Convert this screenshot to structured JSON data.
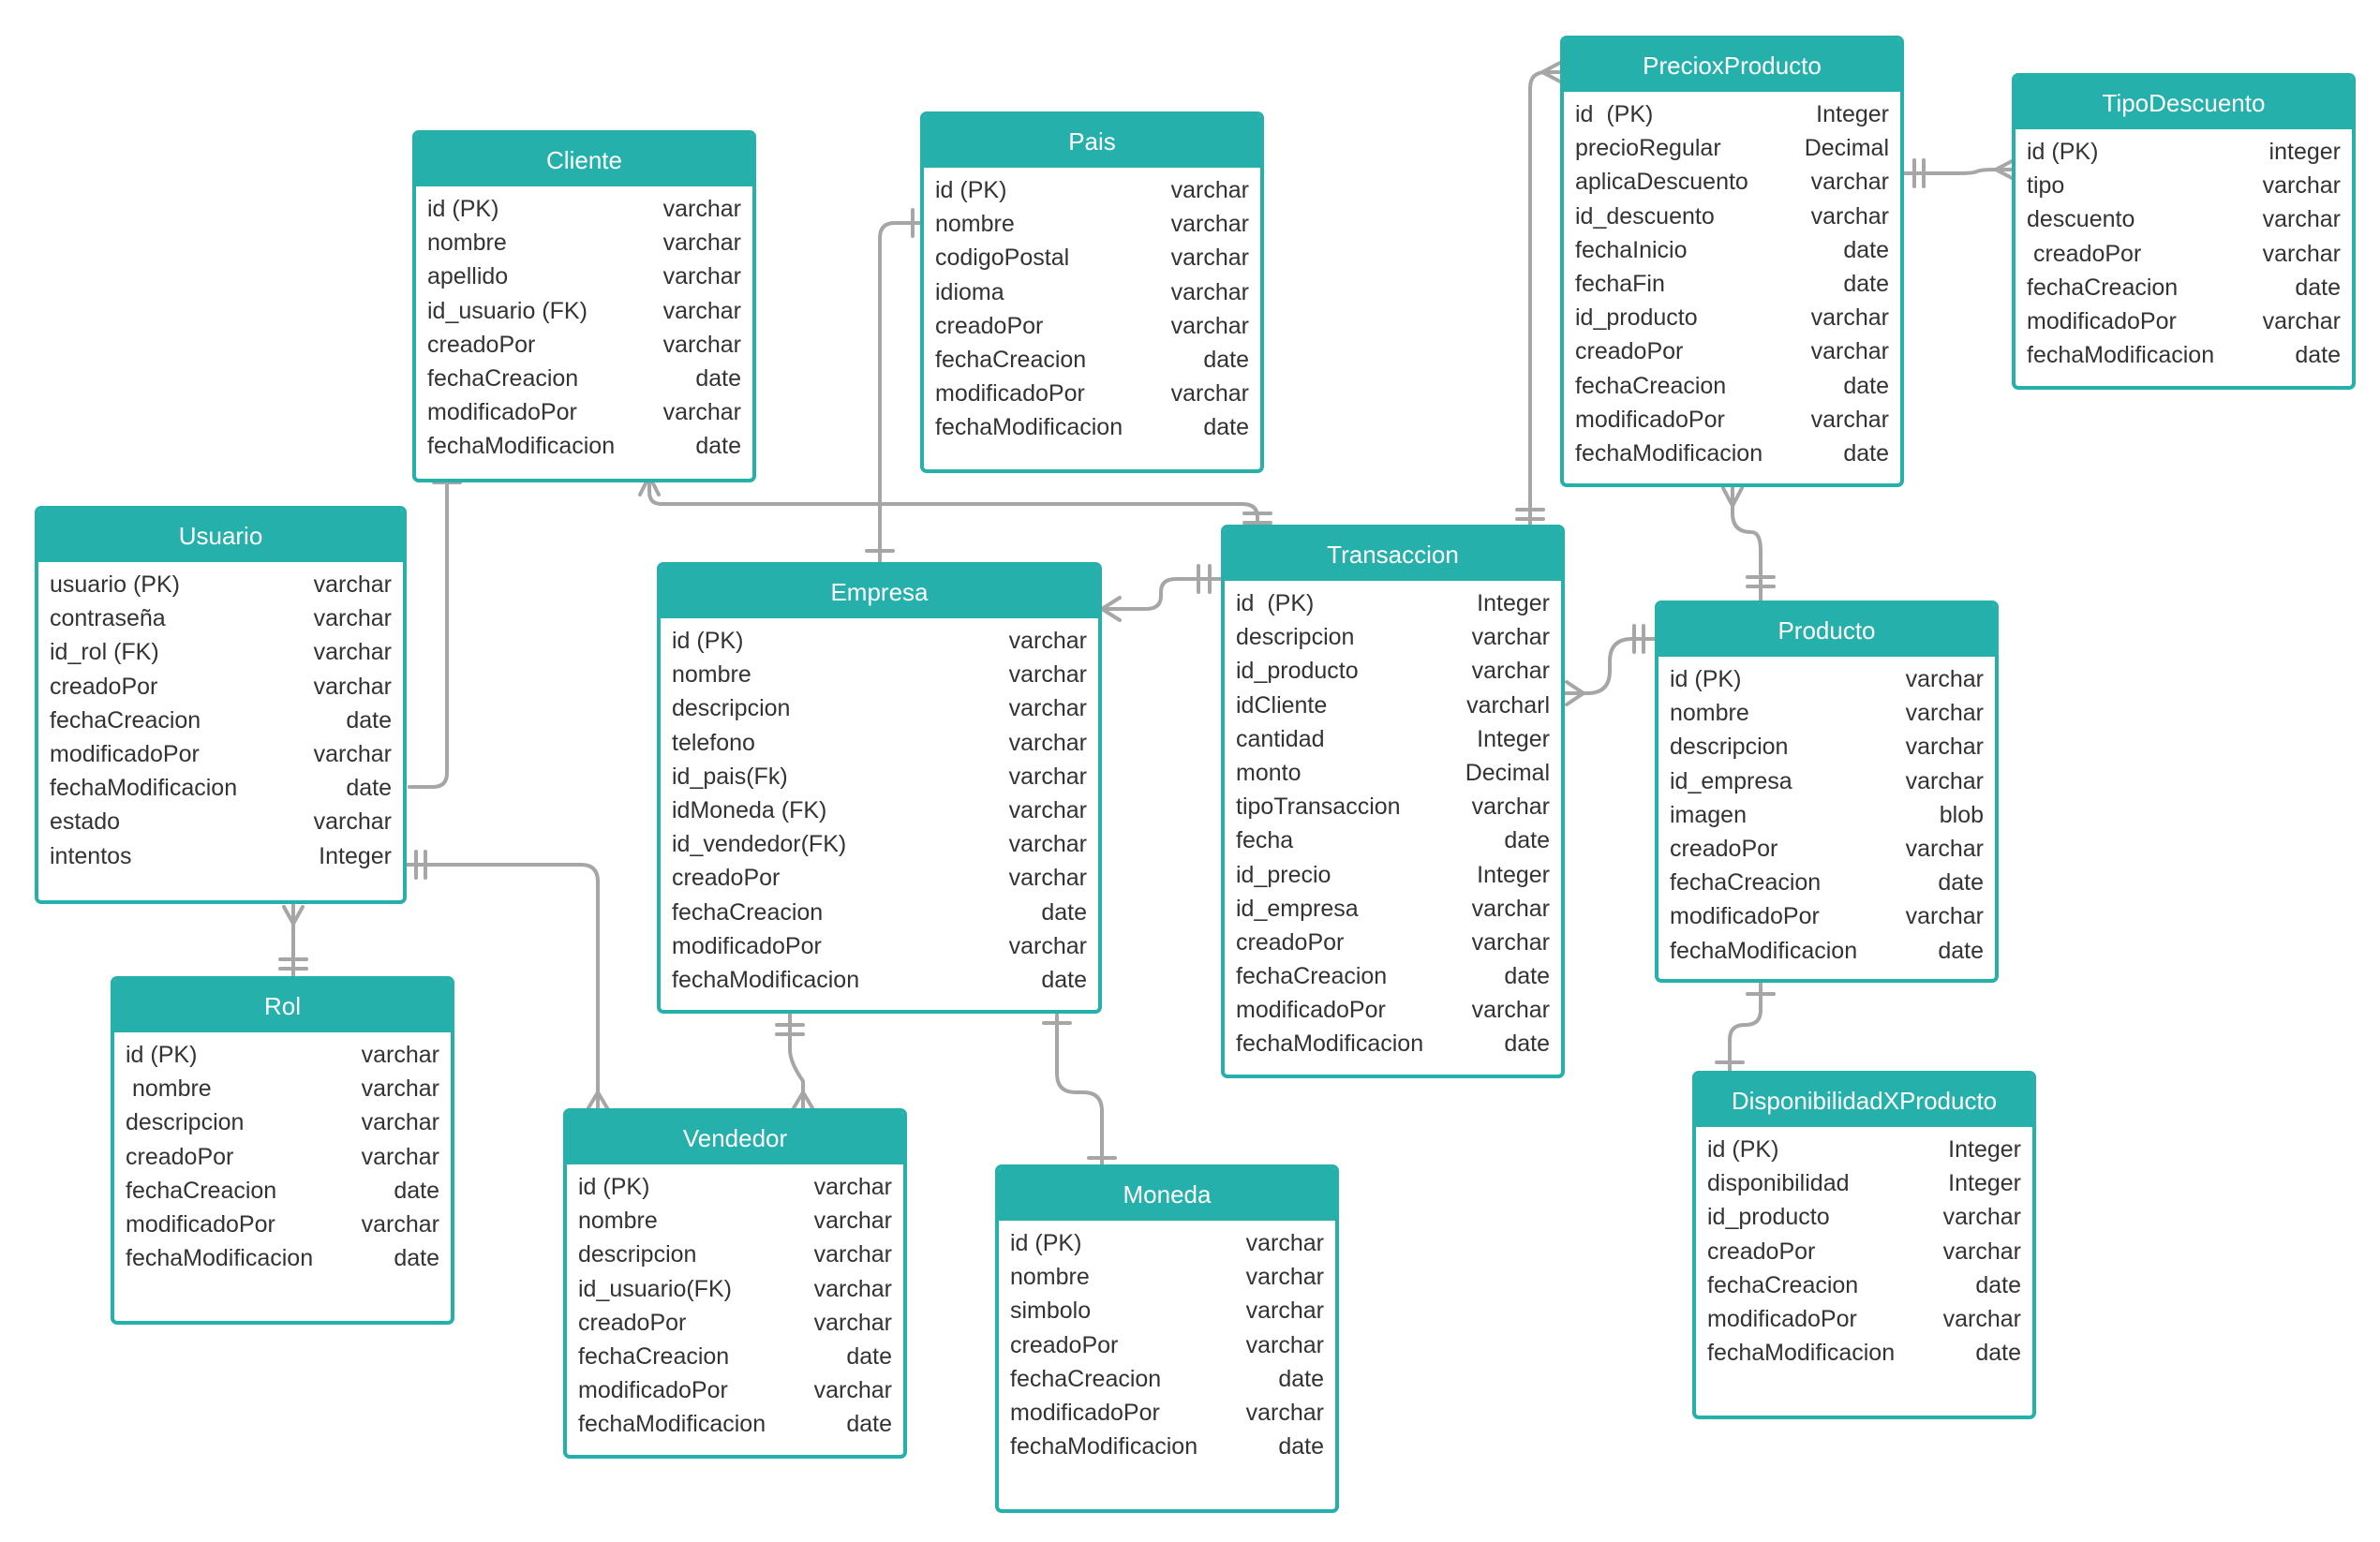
{
  "entities": {
    "cliente": {
      "title": "Cliente",
      "attributes": [
        {
          "name": "id (PK)",
          "type": "varchar"
        },
        {
          "name": "nombre",
          "type": "varchar"
        },
        {
          "name": "apellido",
          "type": "varchar"
        },
        {
          "name": "id_usuario (FK)",
          "type": "varchar"
        },
        {
          "name": "creadoPor",
          "type": "varchar"
        },
        {
          "name": "fechaCreacion",
          "type": "date"
        },
        {
          "name": "modificadoPor",
          "type": "varchar"
        },
        {
          "name": "fechaModificacion",
          "type": "date"
        }
      ]
    },
    "pais": {
      "title": "Pais",
      "attributes": [
        {
          "name": "id (PK)",
          "type": "varchar"
        },
        {
          "name": "nombre",
          "type": "varchar"
        },
        {
          "name": "codigoPostal",
          "type": "varchar"
        },
        {
          "name": "idioma",
          "type": "varchar"
        },
        {
          "name": "creadoPor",
          "type": "varchar"
        },
        {
          "name": "fechaCreacion",
          "type": "date"
        },
        {
          "name": "modificadoPor",
          "type": "varchar"
        },
        {
          "name": "fechaModificacion",
          "type": "date"
        }
      ]
    },
    "precioxproducto": {
      "title": "PrecioxProducto",
      "attributes": [
        {
          "name": "id  (PK)",
          "type": "Integer"
        },
        {
          "name": "precioRegular",
          "type": "Decimal"
        },
        {
          "name": "aplicaDescuento",
          "type": "varchar"
        },
        {
          "name": "id_descuento",
          "type": "varchar"
        },
        {
          "name": "fechaInicio",
          "type": "date"
        },
        {
          "name": "fechaFin",
          "type": "date"
        },
        {
          "name": "id_producto",
          "type": "varchar"
        },
        {
          "name": "creadoPor",
          "type": "varchar"
        },
        {
          "name": "fechaCreacion",
          "type": "date"
        },
        {
          "name": "modificadoPor",
          "type": "varchar"
        },
        {
          "name": "fechaModificacion",
          "type": "date"
        }
      ]
    },
    "tipodescuento": {
      "title": "TipoDescuento",
      "attributes": [
        {
          "name": "id (PK)",
          "type": "integer"
        },
        {
          "name": "tipo",
          "type": "varchar"
        },
        {
          "name": "descuento",
          "type": "varchar"
        },
        {
          "name": " creadoPor",
          "type": "varchar"
        },
        {
          "name": "fechaCreacion",
          "type": "date"
        },
        {
          "name": "modificadoPor",
          "type": "varchar"
        },
        {
          "name": "fechaModificacion",
          "type": "date"
        }
      ]
    },
    "usuario": {
      "title": "Usuario",
      "attributes": [
        {
          "name": "usuario (PK)",
          "type": "varchar"
        },
        {
          "name": "contraseña",
          "type": "varchar"
        },
        {
          "name": "id_rol (FK)",
          "type": "varchar"
        },
        {
          "name": "creadoPor",
          "type": "varchar"
        },
        {
          "name": "fechaCreacion",
          "type": "date"
        },
        {
          "name": "modificadoPor",
          "type": "varchar"
        },
        {
          "name": "fechaModificacion",
          "type": "date"
        },
        {
          "name": "estado",
          "type": "varchar"
        },
        {
          "name": "intentos",
          "type": "Integer"
        }
      ]
    },
    "empresa": {
      "title": "Empresa",
      "attributes": [
        {
          "name": "id (PK)",
          "type": "varchar"
        },
        {
          "name": "nombre",
          "type": "varchar"
        },
        {
          "name": "descripcion",
          "type": "varchar"
        },
        {
          "name": "telefono",
          "type": "varchar"
        },
        {
          "name": "id_pais(Fk)",
          "type": "varchar"
        },
        {
          "name": "idMoneda (FK)",
          "type": "varchar"
        },
        {
          "name": "id_vendedor(FK)",
          "type": "varchar"
        },
        {
          "name": "creadoPor",
          "type": "varchar"
        },
        {
          "name": "fechaCreacion",
          "type": "date"
        },
        {
          "name": "modificadoPor",
          "type": "varchar"
        },
        {
          "name": "fechaModificacion",
          "type": "date"
        }
      ]
    },
    "transaccion": {
      "title": "Transaccion",
      "attributes": [
        {
          "name": "id  (PK)",
          "type": "Integer"
        },
        {
          "name": "descripcion",
          "type": "varchar"
        },
        {
          "name": "id_producto",
          "type": "varchar"
        },
        {
          "name": "idCliente",
          "type": "varcharl"
        },
        {
          "name": "cantidad",
          "type": "Integer"
        },
        {
          "name": "monto",
          "type": "Decimal"
        },
        {
          "name": "tipoTransaccion",
          "type": "varchar"
        },
        {
          "name": "fecha",
          "type": "date"
        },
        {
          "name": "id_precio",
          "type": "Integer"
        },
        {
          "name": "id_empresa",
          "type": "varchar"
        },
        {
          "name": "creadoPor",
          "type": "varchar"
        },
        {
          "name": "fechaCreacion",
          "type": "date"
        },
        {
          "name": "modificadoPor",
          "type": "varchar"
        },
        {
          "name": "fechaModificacion",
          "type": "date"
        }
      ]
    },
    "producto": {
      "title": "Producto",
      "attributes": [
        {
          "name": "id (PK)",
          "type": "varchar"
        },
        {
          "name": "nombre",
          "type": "varchar"
        },
        {
          "name": "descripcion",
          "type": "varchar"
        },
        {
          "name": "id_empresa",
          "type": "varchar"
        },
        {
          "name": "imagen",
          "type": "blob"
        },
        {
          "name": "creadoPor",
          "type": "varchar"
        },
        {
          "name": "fechaCreacion",
          "type": "date"
        },
        {
          "name": "modificadoPor",
          "type": "varchar"
        },
        {
          "name": "fechaModificacion",
          "type": "date"
        }
      ]
    },
    "rol": {
      "title": "Rol",
      "attributes": [
        {
          "name": "id (PK)",
          "type": "varchar"
        },
        {
          "name": " nombre",
          "type": "varchar"
        },
        {
          "name": "descripcion",
          "type": "varchar"
        },
        {
          "name": "creadoPor",
          "type": "varchar"
        },
        {
          "name": "fechaCreacion",
          "type": "date"
        },
        {
          "name": "modificadoPor",
          "type": "varchar"
        },
        {
          "name": "fechaModificacion",
          "type": "date"
        }
      ]
    },
    "vendedor": {
      "title": "Vendedor",
      "attributes": [
        {
          "name": "id (PK)",
          "type": "varchar"
        },
        {
          "name": "nombre",
          "type": "varchar"
        },
        {
          "name": "descripcion",
          "type": "varchar"
        },
        {
          "name": "id_usuario(FK)",
          "type": "varchar"
        },
        {
          "name": "creadoPor",
          "type": "varchar"
        },
        {
          "name": "fechaCreacion",
          "type": "date"
        },
        {
          "name": "modificadoPor",
          "type": "varchar"
        },
        {
          "name": "fechaModificacion",
          "type": "date"
        }
      ]
    },
    "moneda": {
      "title": "Moneda",
      "attributes": [
        {
          "name": "id (PK)",
          "type": "varchar"
        },
        {
          "name": "nombre",
          "type": "varchar"
        },
        {
          "name": "simbolo",
          "type": "varchar"
        },
        {
          "name": "creadoPor",
          "type": "varchar"
        },
        {
          "name": "fechaCreacion",
          "type": "date"
        },
        {
          "name": "modificadoPor",
          "type": "varchar"
        },
        {
          "name": "fechaModificacion",
          "type": "date"
        }
      ]
    },
    "disponibilidadxproducto": {
      "title": "DisponibilidadXProducto",
      "attributes": [
        {
          "name": "id (PK)",
          "type": "Integer"
        },
        {
          "name": "disponibilidad",
          "type": "Integer"
        },
        {
          "name": "id_producto",
          "type": "varchar"
        },
        {
          "name": "creadoPor",
          "type": "varchar"
        },
        {
          "name": "fechaCreacion",
          "type": "date"
        },
        {
          "name": "modificadoPor",
          "type": "varchar"
        },
        {
          "name": "fechaModificacion",
          "type": "date"
        }
      ]
    }
  },
  "colors": {
    "header": "#26b0ac",
    "border": "#26b0ac",
    "connector": "#a6a6a6",
    "text": "#333333"
  }
}
